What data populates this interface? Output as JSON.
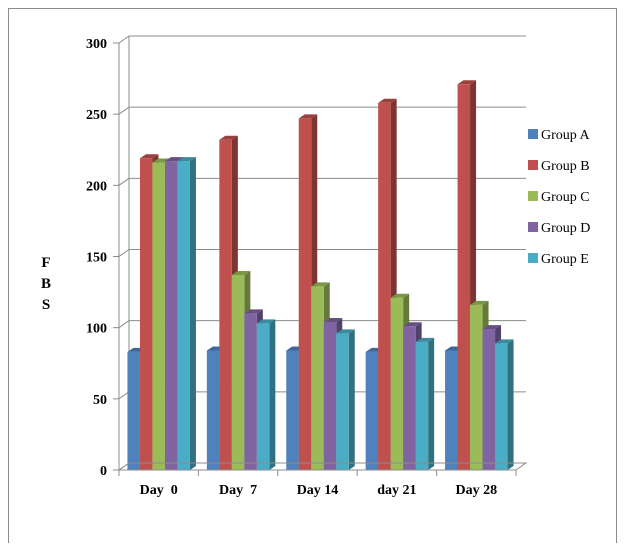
{
  "chart_data": {
    "type": "bar",
    "ylabel": "F B S",
    "ylabel_letters": [
      "F",
      "B",
      "S"
    ],
    "ylim": [
      0,
      300
    ],
    "yticks": [
      "0",
      "50",
      "100",
      "150",
      "200",
      "250",
      "300"
    ],
    "grid": true,
    "legend_position": "right",
    "categories": [
      "Day  0",
      "Day  7",
      "Day 14",
      "day 21",
      "Day 28"
    ],
    "series": [
      {
        "name": "Group A",
        "color": "#4f81bd",
        "values": [
          83,
          84,
          84,
          83,
          84
        ]
      },
      {
        "name": "Group B",
        "color": "#c0504d",
        "values": [
          219,
          232,
          247,
          258,
          271
        ]
      },
      {
        "name": "Group C",
        "color": "#9bbb59",
        "values": [
          216,
          137,
          129,
          121,
          116
        ]
      },
      {
        "name": "Group D",
        "color": "#8064a2",
        "values": [
          217,
          110,
          104,
          101,
          99
        ]
      },
      {
        "name": "Group E",
        "color": "#4bacc6",
        "values": [
          217,
          103,
          96,
          90,
          89
        ]
      }
    ]
  }
}
